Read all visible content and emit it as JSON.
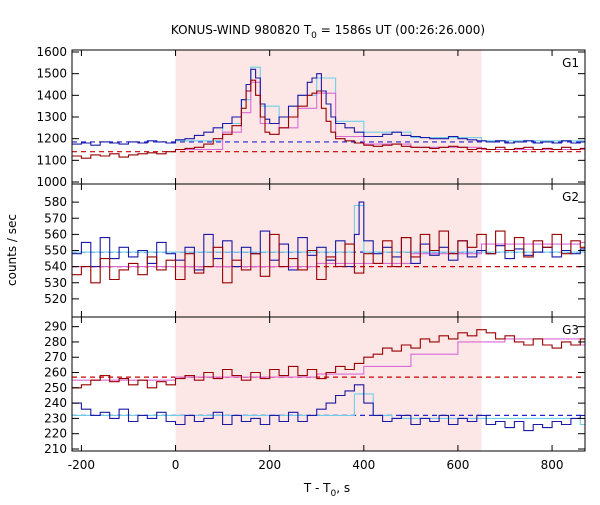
{
  "chart_data": {
    "type": "line",
    "title": "KONUS-WIND 980820 T",
    "title_sub": "0",
    "title_rest": " = 1586s UT (00:26:26.000)",
    "xlabel": "T - T",
    "xlabel_sub": "0",
    "xlabel_rest": ", s",
    "ylabel": "counts / sec",
    "xlim": [
      -220,
      870
    ],
    "xticks": [
      -200,
      0,
      200,
      400,
      600,
      800
    ],
    "highlight_interval": [
      0,
      650
    ],
    "colors": {
      "highlight": "#fde6e6",
      "red_series": "#990000",
      "blue_series": "#1a1aa6",
      "cyan_fit": "#6fcfe8",
      "magenta_fit": "#d86ad8",
      "red_background": "#cc0000",
      "blue_background": "#2222cc"
    },
    "panels": [
      {
        "name": "G1",
        "ylim": [
          1000,
          1600
        ],
        "yticks": [
          1000,
          1100,
          1200,
          1300,
          1400,
          1500,
          1600
        ],
        "blue_background": 1185,
        "red_background": 1140,
        "series": [
          {
            "color": "blue",
            "x": [
              -220,
              -200,
              -180,
              -160,
              -140,
              -120,
              -100,
              -80,
              -60,
              -40,
              -20,
              0,
              20,
              40,
              60,
              80,
              100,
              120,
              140,
              150,
              160,
              170,
              180,
              190,
              200,
              220,
              240,
              260,
              280,
              290,
              300,
              310,
              320,
              330,
              340,
              360,
              380,
              400,
              420,
              440,
              460,
              480,
              500,
              520,
              540,
              560,
              580,
              600,
              620,
              640,
              660,
              680,
              700,
              720,
              740,
              760,
              780,
              800,
              820,
              840,
              860
            ],
            "values": [
              1175,
              1180,
              1170,
              1185,
              1180,
              1175,
              1185,
              1180,
              1190,
              1185,
              1180,
              1195,
              1200,
              1215,
              1230,
              1250,
              1270,
              1300,
              1380,
              1450,
              1520,
              1480,
              1360,
              1290,
              1270,
              1300,
              1350,
              1400,
              1460,
              1480,
              1500,
              1420,
              1360,
              1300,
              1270,
              1250,
              1230,
              1210,
              1210,
              1220,
              1230,
              1215,
              1210,
              1205,
              1200,
              1200,
              1210,
              1200,
              1195,
              1190,
              1185,
              1190,
              1180,
              1185,
              1190,
              1180,
              1185,
              1180,
              1190,
              1180,
              1185
            ]
          },
          {
            "color": "red",
            "x": [
              -220,
              -200,
              -180,
              -160,
              -140,
              -120,
              -100,
              -80,
              -60,
              -40,
              -20,
              0,
              20,
              40,
              60,
              80,
              100,
              120,
              140,
              150,
              160,
              170,
              180,
              190,
              200,
              220,
              240,
              260,
              280,
              290,
              300,
              310,
              320,
              330,
              340,
              360,
              380,
              400,
              420,
              440,
              460,
              480,
              500,
              520,
              540,
              560,
              580,
              600,
              620,
              640,
              660,
              680,
              700,
              720,
              740,
              760,
              780,
              800,
              820,
              840,
              860
            ],
            "values": [
              1120,
              1110,
              1125,
              1120,
              1130,
              1115,
              1125,
              1130,
              1135,
              1130,
              1140,
              1150,
              1155,
              1160,
              1175,
              1200,
              1220,
              1260,
              1340,
              1420,
              1470,
              1400,
              1300,
              1230,
              1220,
              1250,
              1300,
              1350,
              1400,
              1410,
              1420,
              1340,
              1280,
              1230,
              1200,
              1190,
              1180,
              1170,
              1165,
              1170,
              1175,
              1165,
              1160,
              1160,
              1155,
              1160,
              1165,
              1160,
              1150,
              1155,
              1150,
              1160,
              1150,
              1155,
              1160,
              1150,
              1155,
              1150,
              1160,
              1150,
              1155
            ]
          }
        ],
        "fits": [
          {
            "color": "cyan",
            "x": [
              0,
              100,
              140,
              160,
              180,
              220,
              260,
              300,
              340,
              400,
              500,
              650
            ],
            "values": [
              1190,
              1270,
              1380,
              1530,
              1350,
              1300,
              1400,
              1480,
              1280,
              1230,
              1205,
              1190
            ]
          },
          {
            "color": "magenta",
            "x": [
              0,
              100,
              140,
              160,
              180,
              220,
              260,
              300,
              340,
              400,
              500,
              650
            ],
            "values": [
              1150,
              1230,
              1320,
              1460,
              1270,
              1250,
              1340,
              1410,
              1210,
              1175,
              1160,
              1150
            ]
          }
        ]
      },
      {
        "name": "G2",
        "ylim": [
          510,
          590
        ],
        "yticks": [
          520,
          530,
          540,
          550,
          560,
          570,
          580
        ],
        "blue_background": 549,
        "red_background": 540,
        "series": [
          {
            "color": "blue",
            "x": [
              -220,
              -200,
              -180,
              -160,
              -140,
              -120,
              -100,
              -80,
              -60,
              -40,
              -20,
              0,
              20,
              40,
              60,
              80,
              100,
              120,
              140,
              160,
              180,
              200,
              220,
              240,
              260,
              280,
              300,
              320,
              340,
              360,
              380,
              390,
              400,
              420,
              440,
              460,
              480,
              500,
              520,
              540,
              560,
              580,
              600,
              620,
              640,
              660,
              680,
              700,
              720,
              740,
              760,
              780,
              800,
              820,
              840,
              860
            ],
            "values": [
              548,
              555,
              540,
              558,
              545,
              552,
              546,
              550,
              542,
              555,
              548,
              544,
              552,
              538,
              560,
              545,
              556,
              540,
              552,
              548,
              562,
              544,
              554,
              538,
              558,
              547,
              552,
              544,
              556,
              540,
              560,
              580,
              556,
              548,
              552,
              546,
              558,
              542,
              554,
              547,
              552,
              544,
              556,
              546,
              550,
              548,
              553,
              545,
              551,
              547,
              549,
              552,
              546,
              550,
              548,
              551
            ]
          },
          {
            "color": "red",
            "x": [
              -220,
              -200,
              -180,
              -160,
              -140,
              -120,
              -100,
              -80,
              -60,
              -40,
              -20,
              0,
              20,
              40,
              60,
              80,
              100,
              120,
              140,
              160,
              180,
              200,
              220,
              240,
              260,
              280,
              300,
              320,
              340,
              360,
              380,
              400,
              420,
              440,
              460,
              480,
              500,
              520,
              540,
              560,
              580,
              600,
              620,
              640,
              660,
              680,
              700,
              720,
              740,
              760,
              780,
              800,
              820,
              840,
              860
            ],
            "values": [
              535,
              540,
              530,
              545,
              532,
              538,
              542,
              535,
              546,
              538,
              544,
              532,
              548,
              536,
              540,
              552,
              530,
              544,
              538,
              548,
              534,
              560,
              540,
              545,
              538,
              550,
              532,
              546,
              540,
              554,
              536,
              548,
              542,
              556,
              540,
              558,
              546,
              560,
              550,
              562,
              548,
              556,
              552,
              560,
              548,
              562,
              550,
              558,
              546,
              556,
              552,
              560,
              548,
              556,
              552
            ]
          }
        ],
        "fits": [
          {
            "color": "cyan",
            "x": [
              -220,
              0,
              360,
              380,
              400,
              420,
              860
            ],
            "values": [
              549,
              549,
              549,
              578,
              549,
              549,
              549
            ]
          },
          {
            "color": "magenta",
            "x": [
              -220,
              0,
              300,
              500,
              650,
              860
            ],
            "values": [
              540,
              540,
              542,
              548,
              554,
              555
            ]
          }
        ]
      },
      {
        "name": "G3",
        "ylim": [
          210,
          295
        ],
        "yticks": [
          210,
          220,
          230,
          240,
          250,
          260,
          270,
          280,
          290
        ],
        "blue_background": 232,
        "red_background": 257,
        "series": [
          {
            "color": "blue",
            "x": [
              -220,
              -200,
              -180,
              -160,
              -140,
              -120,
              -100,
              -80,
              -60,
              -40,
              -20,
              0,
              20,
              40,
              60,
              80,
              100,
              120,
              140,
              160,
              180,
              200,
              220,
              240,
              260,
              280,
              300,
              320,
              340,
              360,
              380,
              400,
              420,
              440,
              460,
              480,
              500,
              520,
              540,
              560,
              580,
              600,
              620,
              640,
              660,
              680,
              700,
              720,
              740,
              760,
              780,
              800,
              820,
              840,
              860
            ],
            "values": [
              240,
              236,
              232,
              234,
              230,
              236,
              228,
              232,
              230,
              234,
              228,
              226,
              232,
              228,
              230,
              234,
              226,
              232,
              228,
              230,
              226,
              232,
              228,
              234,
              228,
              232,
              236,
              240,
              245,
              248,
              252,
              240,
              232,
              228,
              230,
              232,
              226,
              230,
              228,
              232,
              226,
              230,
              228,
              232,
              226,
              228,
              224,
              228,
              222,
              226,
              224,
              228,
              226,
              230,
              232
            ]
          },
          {
            "color": "red",
            "x": [
              -220,
              -200,
              -180,
              -160,
              -140,
              -120,
              -100,
              -80,
              -60,
              -40,
              -20,
              0,
              20,
              40,
              60,
              80,
              100,
              120,
              140,
              160,
              180,
              200,
              220,
              240,
              260,
              280,
              300,
              320,
              340,
              360,
              380,
              400,
              420,
              440,
              460,
              480,
              500,
              520,
              540,
              560,
              580,
              600,
              620,
              640,
              660,
              680,
              700,
              720,
              740,
              760,
              780,
              800,
              820,
              840,
              860
            ],
            "values": [
              250,
              252,
              255,
              258,
              254,
              256,
              252,
              255,
              250,
              254,
              252,
              256,
              258,
              255,
              260,
              256,
              262,
              258,
              255,
              260,
              256,
              262,
              258,
              264,
              258,
              262,
              256,
              260,
              264,
              262,
              266,
              270,
              272,
              276,
              274,
              278,
              276,
              282,
              280,
              284,
              282,
              286,
              284,
              288,
              286,
              282,
              284,
              280,
              278,
              282,
              278,
              276,
              280,
              278,
              282
            ]
          }
        ],
        "fits": [
          {
            "color": "cyan",
            "x": [
              -220,
              0,
              300,
              380,
              420,
              460,
              500,
              860
            ],
            "values": [
              232,
              232,
              232,
              246,
              232,
              230,
              230,
              226
            ]
          },
          {
            "color": "magenta",
            "x": [
              -220,
              0,
              300,
              400,
              500,
              600,
              700,
              860
            ],
            "values": [
              255,
              257,
              259,
              264,
              272,
              280,
              282,
              278
            ]
          }
        ]
      }
    ]
  }
}
